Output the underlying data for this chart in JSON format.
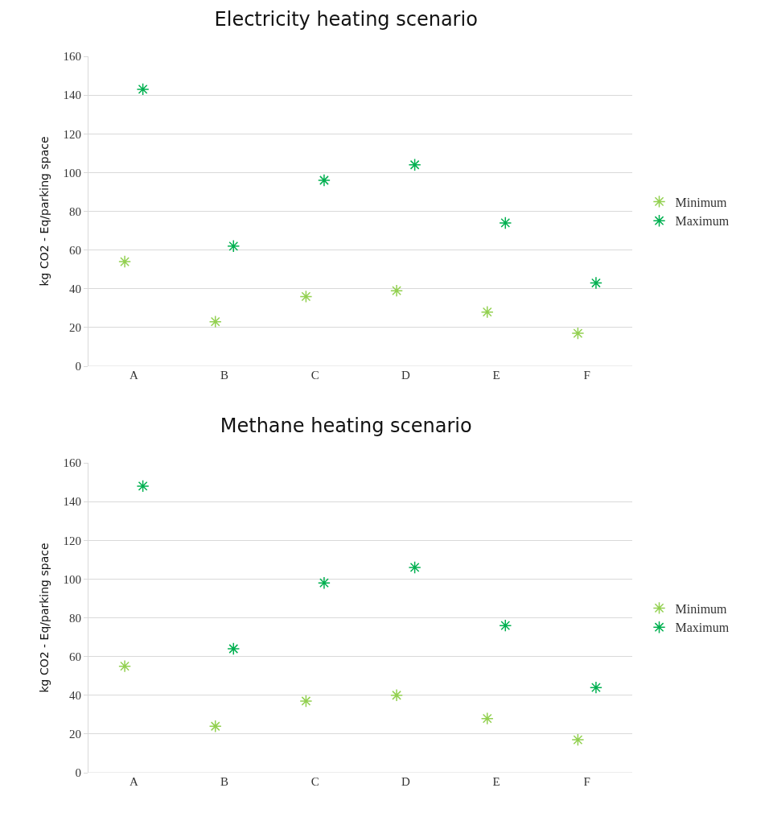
{
  "chart_data": [
    {
      "type": "scatter",
      "title": "Electricity heating scenario",
      "ylabel": "kg CO2 - Eq/parking space",
      "categories": [
        "A",
        "B",
        "C",
        "D",
        "E",
        "F"
      ],
      "series": [
        {
          "name": "Minimum",
          "color": "#92d050",
          "values": [
            54,
            23,
            36,
            39,
            28,
            17
          ]
        },
        {
          "name": "Maximum",
          "color": "#00b050",
          "values": [
            143,
            62,
            96,
            104,
            74,
            43
          ]
        }
      ],
      "ylim": [
        0,
        160
      ],
      "yticks": [
        0,
        20,
        40,
        60,
        80,
        100,
        120,
        140,
        160
      ],
      "grid": "y",
      "legend": "right",
      "marker": "cross"
    },
    {
      "type": "scatter",
      "title": "Methane heating scenario",
      "ylabel": "kg CO2 - Eq/parking space",
      "categories": [
        "A",
        "B",
        "C",
        "D",
        "E",
        "F"
      ],
      "series": [
        {
          "name": "Minimum",
          "color": "#92d050",
          "values": [
            55,
            24,
            37,
            40,
            28,
            17
          ]
        },
        {
          "name": "Maximum",
          "color": "#00b050",
          "values": [
            148,
            64,
            98,
            106,
            76,
            44
          ]
        }
      ],
      "ylim": [
        0,
        160
      ],
      "yticks": [
        0,
        20,
        40,
        60,
        80,
        100,
        120,
        140,
        160
      ],
      "grid": "y",
      "legend": "right",
      "marker": "cross"
    }
  ]
}
